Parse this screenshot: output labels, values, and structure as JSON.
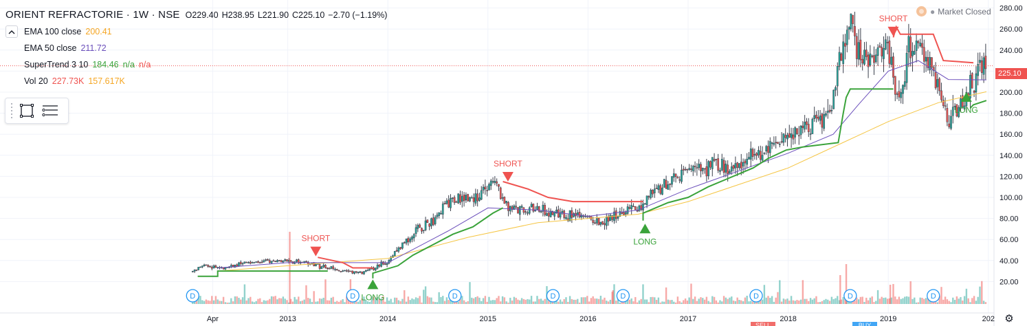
{
  "header": {
    "symbol": "ORIENT REFRACTORIE · 1W · NSE",
    "open": "O229.40",
    "high": "H238.95",
    "low": "L221.90",
    "close": "C225.10",
    "change": "−2.70 (−1.19%)",
    "collapse_icon": "chevron-up-icon"
  },
  "indicators": [
    {
      "label": "EMA 100 close",
      "values": [
        "200.41"
      ],
      "colors": [
        "#f5a623"
      ]
    },
    {
      "label": "EMA 50 close",
      "values": [
        "211.72"
      ],
      "colors": [
        "#6b4fbb"
      ]
    },
    {
      "label": "SuperTrend 3 10",
      "values": [
        "184.46",
        "n/a",
        "n/a"
      ],
      "colors": [
        "#3aa33a",
        "#3aa33a",
        "#ef5350"
      ]
    },
    {
      "label": "Vol 20",
      "values": [
        "227.73K",
        "157.617K"
      ],
      "colors": [
        "#ef5350",
        "#f5a623"
      ]
    }
  ],
  "status": {
    "text": "Market Closed",
    "icon": "clock-icon"
  },
  "toolbar": {
    "icons": [
      "drag-handle-icon",
      "rectangle-select-icon",
      "object-tree-icon"
    ]
  },
  "price_badge": "225.10",
  "colors": {
    "up": "#26a69a",
    "down": "#ef5350",
    "ema100": "#f5c542",
    "ema50": "#6b4fbb",
    "st_up": "#3aa33a",
    "st_down": "#ef5350",
    "dividend": "#2196f3",
    "grid": "#f0f3fa"
  },
  "chart_data": {
    "type": "candlestick",
    "title": "ORIENT REFRACTORIE · 1W · NSE",
    "ylim": [
      0,
      290
    ],
    "y_ticks": [
      "20.00",
      "40.00",
      "60.00",
      "80.00",
      "100.00",
      "120.00",
      "140.00",
      "160.00",
      "180.00",
      "200.00",
      "220.00",
      "240.00",
      "260.00",
      "280.00"
    ],
    "x_ticks": [
      "Apr",
      "2013",
      "2014",
      "2015",
      "2016",
      "2017",
      "2018",
      "2019",
      "202"
    ],
    "x_tick_positions": [
      2012.25,
      2013.0,
      2014.0,
      2015.0,
      2016.0,
      2017.0,
      2018.0,
      2019.0,
      2020.0
    ],
    "last_price": 225.1,
    "price_path": [
      [
        2012.0,
        27
      ],
      [
        2012.15,
        35
      ],
      [
        2012.35,
        33
      ],
      [
        2012.6,
        38
      ],
      [
        2012.85,
        40
      ],
      [
        2013.0,
        40
      ],
      [
        2013.2,
        38
      ],
      [
        2013.35,
        34
      ],
      [
        2013.55,
        30
      ],
      [
        2013.75,
        28
      ],
      [
        2013.9,
        35
      ],
      [
        2014.0,
        40
      ],
      [
        2014.15,
        55
      ],
      [
        2014.3,
        70
      ],
      [
        2014.45,
        78
      ],
      [
        2014.6,
        95
      ],
      [
        2014.75,
        100
      ],
      [
        2014.9,
        100
      ],
      [
        2015.0,
        110
      ],
      [
        2015.07,
        120
      ],
      [
        2015.15,
        95
      ],
      [
        2015.3,
        88
      ],
      [
        2015.5,
        88
      ],
      [
        2015.7,
        85
      ],
      [
        2015.85,
        82
      ],
      [
        2016.0,
        80
      ],
      [
        2016.15,
        75
      ],
      [
        2016.3,
        85
      ],
      [
        2016.5,
        90
      ],
      [
        2016.6,
        100
      ],
      [
        2016.8,
        115
      ],
      [
        2016.95,
        122
      ],
      [
        2017.1,
        128
      ],
      [
        2017.3,
        130
      ],
      [
        2017.5,
        128
      ],
      [
        2017.65,
        142
      ],
      [
        2017.8,
        148
      ],
      [
        2017.95,
        155
      ],
      [
        2018.1,
        165
      ],
      [
        2018.25,
        170
      ],
      [
        2018.4,
        175
      ],
      [
        2018.55,
        240
      ],
      [
        2018.62,
        272
      ],
      [
        2018.7,
        235
      ],
      [
        2018.8,
        230
      ],
      [
        2018.9,
        245
      ],
      [
        2019.0,
        240
      ],
      [
        2019.05,
        210
      ],
      [
        2019.1,
        190
      ],
      [
        2019.2,
        238
      ],
      [
        2019.3,
        240
      ],
      [
        2019.4,
        230
      ],
      [
        2019.5,
        205
      ],
      [
        2019.6,
        175
      ],
      [
        2019.7,
        185
      ],
      [
        2019.8,
        200
      ],
      [
        2019.88,
        213
      ],
      [
        2019.95,
        232
      ],
      [
        2019.98,
        225
      ]
    ],
    "ema100_path": [
      [
        2012.3,
        30
      ],
      [
        2013.0,
        35
      ],
      [
        2014.0,
        42
      ],
      [
        2014.8,
        62
      ],
      [
        2015.5,
        76
      ],
      [
        2016.0,
        80
      ],
      [
        2016.5,
        84
      ],
      [
        2017.0,
        96
      ],
      [
        2017.5,
        112
      ],
      [
        2018.0,
        128
      ],
      [
        2018.5,
        150
      ],
      [
        2019.0,
        172
      ],
      [
        2019.5,
        190
      ],
      [
        2019.98,
        200.41
      ]
    ],
    "ema50_path": [
      [
        2012.3,
        33
      ],
      [
        2013.0,
        38
      ],
      [
        2014.0,
        38
      ],
      [
        2014.6,
        68
      ],
      [
        2015.0,
        90
      ],
      [
        2015.5,
        88
      ],
      [
        2016.0,
        82
      ],
      [
        2016.5,
        88
      ],
      [
        2017.0,
        108
      ],
      [
        2017.5,
        125
      ],
      [
        2018.0,
        142
      ],
      [
        2018.45,
        160
      ],
      [
        2018.7,
        188
      ],
      [
        2019.0,
        220
      ],
      [
        2019.3,
        230
      ],
      [
        2019.6,
        212
      ],
      [
        2019.98,
        211.72
      ]
    ],
    "supertrend_segments": [
      {
        "dir": "up",
        "points": [
          [
            2012.1,
            25
          ],
          [
            2012.3,
            25
          ],
          [
            2012.3,
            30
          ],
          [
            2013.4,
            30
          ]
        ]
      },
      {
        "dir": "down",
        "points": [
          [
            2013.3,
            43
          ],
          [
            2013.55,
            38
          ],
          [
            2013.65,
            33
          ],
          [
            2013.85,
            33
          ]
        ]
      },
      {
        "dir": "up",
        "points": [
          [
            2013.85,
            23
          ],
          [
            2013.85,
            28
          ],
          [
            2014.1,
            35
          ],
          [
            2014.25,
            45
          ],
          [
            2014.45,
            55
          ],
          [
            2014.65,
            65
          ],
          [
            2014.85,
            72
          ],
          [
            2015.05,
            85
          ],
          [
            2015.15,
            90
          ]
        ]
      },
      {
        "dir": "down",
        "points": [
          [
            2015.15,
            115
          ],
          [
            2015.4,
            108
          ],
          [
            2015.6,
            100
          ],
          [
            2015.85,
            96
          ],
          [
            2016.2,
            96
          ],
          [
            2016.55,
            96
          ]
        ]
      },
      {
        "dir": "up",
        "points": [
          [
            2016.55,
            78
          ],
          [
            2016.55,
            85
          ],
          [
            2016.8,
            95
          ],
          [
            2017.0,
            100
          ],
          [
            2017.2,
            110
          ],
          [
            2017.4,
            118
          ],
          [
            2017.65,
            128
          ],
          [
            2017.8,
            137
          ],
          [
            2017.98,
            145
          ],
          [
            2018.15,
            148
          ],
          [
            2018.5,
            152
          ],
          [
            2018.55,
            180
          ],
          [
            2018.58,
            195
          ],
          [
            2018.62,
            203
          ],
          [
            2019.05,
            203
          ]
        ]
      },
      {
        "dir": "down",
        "points": [
          [
            2019.05,
            252
          ],
          [
            2019.08,
            262
          ],
          [
            2019.12,
            255
          ],
          [
            2019.45,
            255
          ],
          [
            2019.55,
            230
          ],
          [
            2019.85,
            228
          ]
        ]
      },
      {
        "dir": "up",
        "points": [
          [
            2019.82,
            185
          ],
          [
            2019.85,
            188
          ],
          [
            2019.98,
            192
          ]
        ]
      }
    ],
    "signals": [
      {
        "type": "SHORT",
        "x": 2013.28,
        "price": 44
      },
      {
        "type": "LONG",
        "x": 2013.85,
        "price": 22
      },
      {
        "type": "SHORT",
        "x": 2015.2,
        "price": 115
      },
      {
        "type": "LONG",
        "x": 2016.57,
        "price": 75
      },
      {
        "type": "SHORT",
        "x": 2019.05,
        "price": 253
      },
      {
        "type": "LONG",
        "x": 2019.78,
        "price": 200
      }
    ],
    "dividends": [
      2012.05,
      2013.65,
      2014.67,
      2015.65,
      2016.35,
      2017.68,
      2018.62,
      2019.45
    ],
    "dividend_label": "D",
    "bottom_labels": [
      "SELL",
      "BUY"
    ]
  }
}
